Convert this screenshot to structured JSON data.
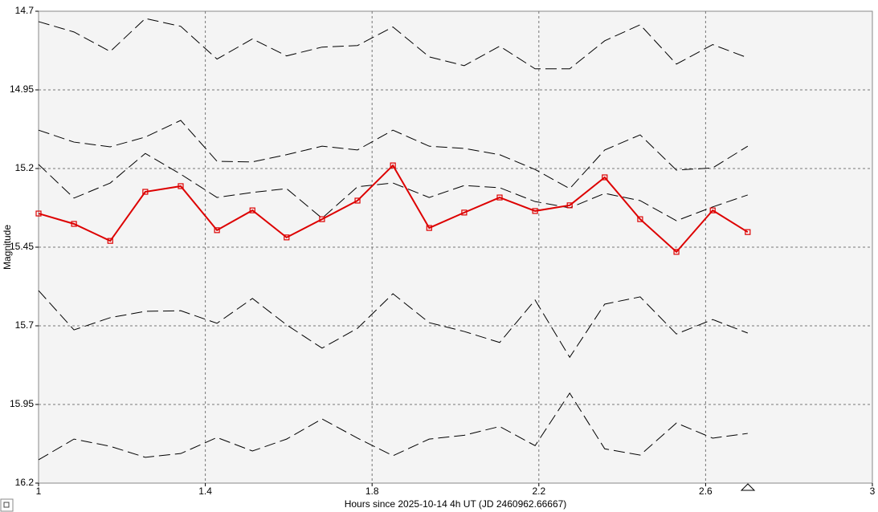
{
  "chart_data": {
    "type": "line",
    "x_label": "Hours since 2025-10-14 4h UT (JD 2460962.66667)",
    "y_label": "Magnitude",
    "x": [
      1.0,
      1.085,
      1.172,
      1.256,
      1.341,
      1.428,
      1.513,
      1.595,
      1.68,
      1.765,
      1.85,
      1.937,
      2.021,
      2.106,
      2.191,
      2.274,
      2.358,
      2.443,
      2.53,
      2.617,
      2.701
    ],
    "xlim": [
      1,
      3
    ],
    "xticks": [
      1,
      1.4,
      1.8,
      2.2,
      2.6,
      3
    ],
    "ylim": [
      14.7,
      16.2
    ],
    "yticks": [
      14.7,
      14.95,
      15.2,
      15.45,
      15.7,
      15.95,
      16.2
    ],
    "y_inverted": true,
    "grid": true,
    "series": [
      {
        "color": "#000000",
        "dashed": true,
        "values": [
          14.733,
          14.766,
          14.828,
          14.723,
          14.748,
          14.852,
          14.788,
          14.842,
          14.814,
          14.809,
          14.75,
          14.845,
          14.873,
          14.811,
          14.883,
          14.883,
          14.794,
          14.743,
          14.868,
          14.806,
          14.848
        ]
      },
      {
        "color": "#000000",
        "dashed": true,
        "values": [
          15.078,
          15.116,
          15.131,
          15.1,
          15.047,
          15.177,
          15.179,
          15.156,
          15.129,
          15.141,
          15.078,
          15.129,
          15.136,
          15.156,
          15.203,
          15.264,
          15.141,
          15.093,
          15.205,
          15.198,
          15.129
        ]
      },
      {
        "color": "#000000",
        "dashed": true,
        "values": [
          15.187,
          15.294,
          15.246,
          15.152,
          15.218,
          15.292,
          15.276,
          15.264,
          15.358,
          15.258,
          15.246,
          15.292,
          15.254,
          15.261,
          15.305,
          15.325,
          15.279,
          15.302,
          15.366,
          15.322,
          15.284
        ]
      },
      {
        "color": "#000000",
        "dashed": true,
        "values": [
          15.588,
          15.713,
          15.674,
          15.654,
          15.652,
          15.692,
          15.613,
          15.697,
          15.771,
          15.708,
          15.598,
          15.69,
          15.718,
          15.753,
          15.618,
          15.8,
          15.631,
          15.608,
          15.726,
          15.68,
          15.723
        ]
      },
      {
        "color": "#000000",
        "dashed": true,
        "values": [
          16.126,
          16.06,
          16.083,
          16.118,
          16.106,
          16.055,
          16.098,
          16.06,
          15.996,
          16.057,
          16.113,
          16.06,
          16.048,
          16.02,
          16.081,
          15.914,
          16.091,
          16.111,
          16.009,
          16.057,
          16.042
        ]
      },
      {
        "color": "#dd0000",
        "dashed": false,
        "markers": true,
        "values": [
          15.343,
          15.376,
          15.43,
          15.274,
          15.256,
          15.396,
          15.333,
          15.419,
          15.361,
          15.302,
          15.19,
          15.389,
          15.34,
          15.292,
          15.335,
          15.317,
          15.228,
          15.361,
          15.465,
          15.333,
          15.402
        ]
      }
    ]
  }
}
